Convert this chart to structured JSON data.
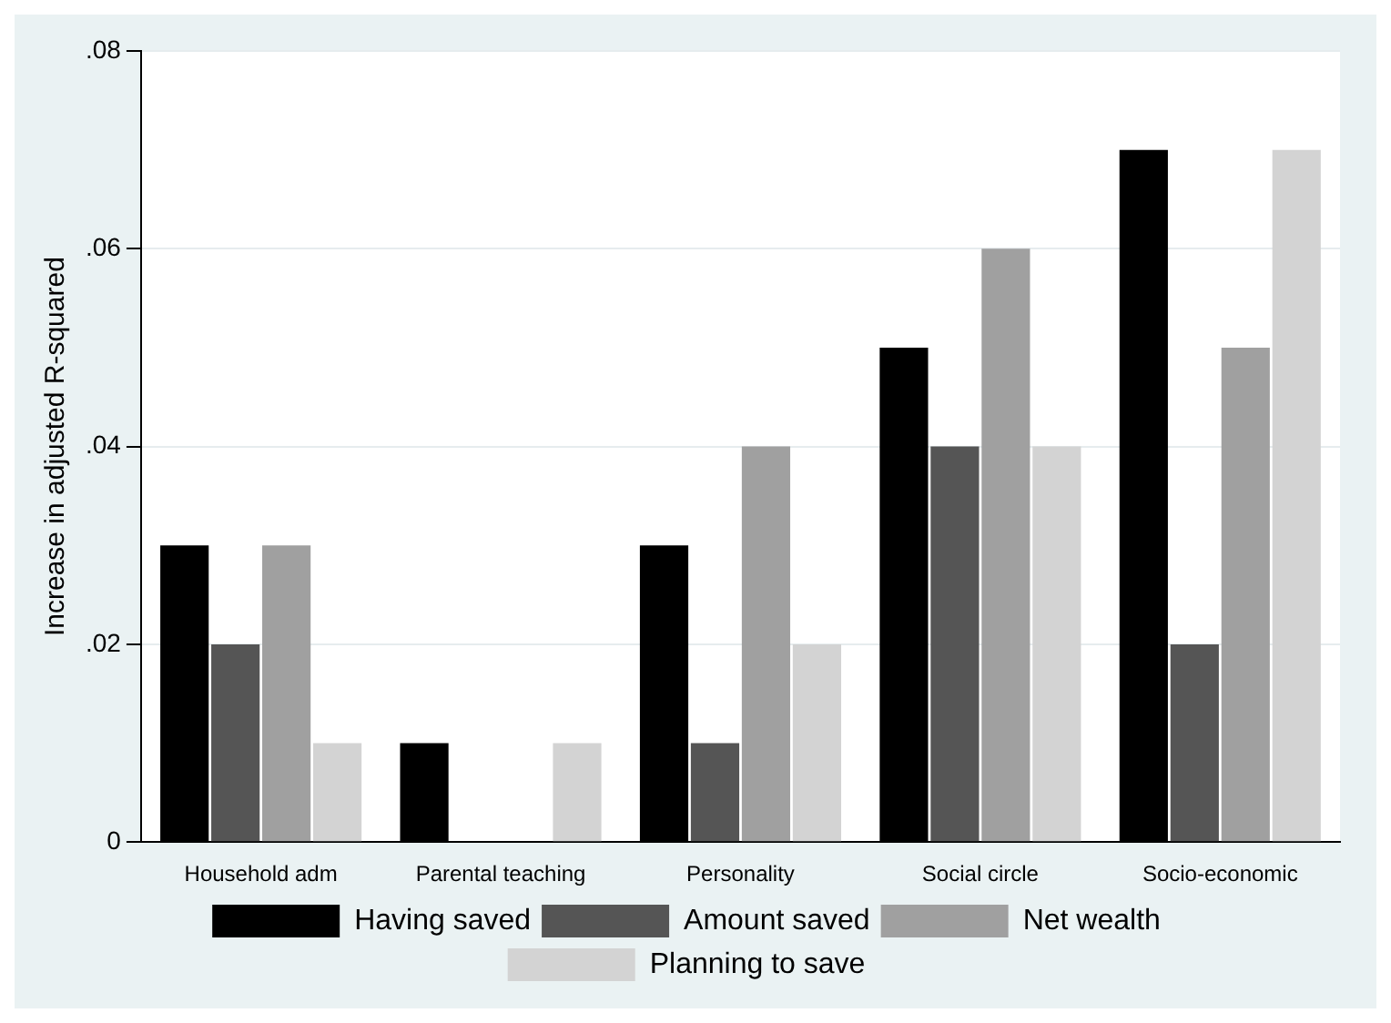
{
  "chart_data": {
    "type": "bar",
    "ylabel": "Increase in adjusted R-squared",
    "categories": [
      "Household adm",
      "Parental teaching",
      "Personality",
      "Social circle",
      "Socio-economic"
    ],
    "series": [
      {
        "name": "Having saved",
        "color": "#000000",
        "values": [
          0.03,
          0.01,
          0.03,
          0.05,
          0.07
        ]
      },
      {
        "name": "Amount saved",
        "color": "#555555",
        "values": [
          0.02,
          0,
          0.01,
          0.04,
          0.02
        ]
      },
      {
        "name": "Net wealth",
        "color": "#a0a0a0",
        "values": [
          0.03,
          0,
          0.04,
          0.06,
          0.05
        ]
      },
      {
        "name": "Planning to save",
        "color": "#d3d3d3",
        "values": [
          0.01,
          0.01,
          0.02,
          0.04,
          0.07
        ]
      }
    ],
    "ylim": [
      0,
      0.08
    ],
    "yticks": [
      {
        "value": 0,
        "label": "0"
      },
      {
        "value": 0.02,
        "label": ".02"
      },
      {
        "value": 0.04,
        "label": ".04"
      },
      {
        "value": 0.06,
        "label": ".06"
      },
      {
        "value": 0.08,
        "label": ".08"
      }
    ],
    "grid": "y",
    "legend": "bottom"
  }
}
